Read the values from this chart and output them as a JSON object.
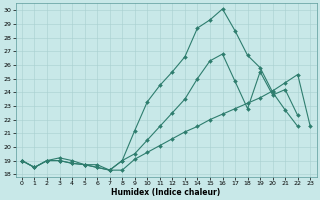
{
  "background_color": "#c8e8e8",
  "grid_color": "#a8d0d0",
  "line_color": "#2e7d6e",
  "xlabel": "Humidex (Indice chaleur)",
  "xlim": [
    -0.5,
    23.5
  ],
  "ylim": [
    17.8,
    30.5
  ],
  "yticks": [
    18,
    19,
    20,
    21,
    22,
    23,
    24,
    25,
    26,
    27,
    28,
    29,
    30
  ],
  "xticks": [
    0,
    1,
    2,
    3,
    4,
    5,
    6,
    7,
    8,
    9,
    10,
    11,
    12,
    13,
    14,
    15,
    16,
    17,
    18,
    19,
    20,
    21,
    22,
    23
  ],
  "series_bottom": {
    "x": [
      0,
      1,
      2,
      3,
      4,
      5,
      6,
      7,
      8,
      9,
      10,
      11,
      12,
      13,
      14,
      15,
      16,
      17,
      18,
      19,
      20,
      21,
      22,
      23
    ],
    "y": [
      19.0,
      18.5,
      19.0,
      19.0,
      18.8,
      18.7,
      18.5,
      18.3,
      18.3,
      19.1,
      19.6,
      20.1,
      20.6,
      21.1,
      21.5,
      22.0,
      22.4,
      22.8,
      23.2,
      23.6,
      24.1,
      24.7,
      25.3,
      21.5
    ]
  },
  "series_top": {
    "x": [
      0,
      1,
      2,
      3,
      4,
      5,
      6,
      7,
      8,
      9,
      10,
      11,
      12,
      13,
      14,
      15,
      16,
      17,
      18,
      19,
      20,
      21,
      22
    ],
    "y": [
      19.0,
      18.5,
      19.0,
      19.2,
      19.0,
      18.7,
      18.7,
      18.3,
      19.0,
      21.2,
      23.3,
      24.5,
      25.5,
      26.6,
      28.7,
      29.3,
      30.1,
      28.5,
      26.7,
      25.8,
      24.0,
      22.7,
      21.5
    ]
  },
  "series_mid": {
    "x": [
      0,
      1,
      2,
      3,
      4,
      5,
      6,
      7,
      8,
      9,
      10,
      11,
      12,
      13,
      14,
      15,
      16,
      17,
      18,
      19,
      20,
      21,
      22
    ],
    "y": [
      19.0,
      18.5,
      19.0,
      19.0,
      18.8,
      18.7,
      18.5,
      18.3,
      19.0,
      19.5,
      20.5,
      21.5,
      22.5,
      23.5,
      25.0,
      26.3,
      26.8,
      24.8,
      22.8,
      25.5,
      23.8,
      24.2,
      22.3
    ]
  }
}
